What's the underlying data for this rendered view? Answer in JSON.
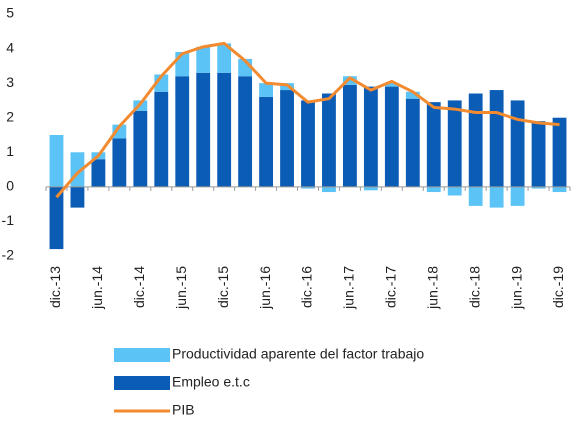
{
  "chart_data": {
    "type": "bar",
    "stacked": true,
    "categories": [
      "dic.-13",
      null,
      "jun.-14",
      null,
      "dic.-14",
      null,
      "jun.-15",
      null,
      "dic.-15",
      null,
      "jun.-16",
      null,
      "dic.-16",
      null,
      "jun.-17",
      null,
      "dic.-17",
      null,
      "jun.-18",
      null,
      "dic.-18",
      null,
      "jun.-19",
      null,
      "dic.-19"
    ],
    "series": [
      {
        "name": "Productividad aparente del factor trabajo",
        "type": "bar",
        "color": "#5bc3f5",
        "values": [
          1.5,
          1.0,
          0.2,
          0.4,
          0.3,
          0.5,
          0.7,
          0.75,
          0.85,
          0.5,
          0.4,
          0.2,
          -0.05,
          -0.15,
          0.25,
          -0.1,
          0.1,
          0.2,
          -0.15,
          -0.25,
          -0.55,
          -0.6,
          -0.55,
          -0.05,
          -0.15
        ]
      },
      {
        "name": "Empleo e.t.c",
        "type": "bar",
        "color": "#0b5cb5",
        "values": [
          -1.8,
          -0.6,
          0.8,
          1.4,
          2.2,
          2.75,
          3.2,
          3.3,
          3.3,
          3.2,
          2.6,
          2.8,
          2.5,
          2.7,
          2.95,
          2.9,
          2.9,
          2.55,
          2.45,
          2.5,
          2.7,
          2.8,
          2.5,
          1.9,
          2.0
        ]
      },
      {
        "name": "PIB",
        "type": "line",
        "color": "#f28a30",
        "values": [
          -0.3,
          0.4,
          0.9,
          1.75,
          2.4,
          3.2,
          3.85,
          4.05,
          4.15,
          3.65,
          3.0,
          2.95,
          2.45,
          2.55,
          3.15,
          2.8,
          3.05,
          2.75,
          2.3,
          2.25,
          2.15,
          2.15,
          1.95,
          1.85,
          1.8
        ]
      }
    ],
    "ylim": [
      -2,
      5
    ],
    "yticks": [
      -2,
      -1,
      0,
      1,
      2,
      3,
      4,
      5
    ],
    "grid": false
  }
}
